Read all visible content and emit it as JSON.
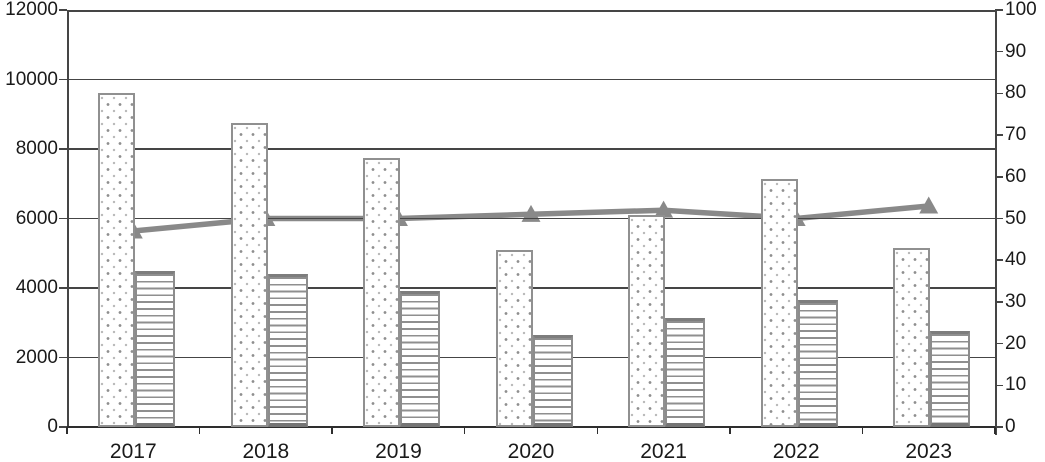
{
  "colors": {
    "axis": "#454545",
    "bottom_axis": "#2e2e2e",
    "text": "#1a1a1a",
    "bar_border": "#8c8c8c",
    "dot_pattern": "#8f8f8f",
    "stripe_pattern": "#8f8f8f",
    "line": "#898989",
    "background": "#ffffff"
  },
  "chart_data": {
    "type": "bar",
    "subtype": "combo-bar-line",
    "title": "",
    "xlabel": "",
    "ylabel": "",
    "legend": false,
    "grid": true,
    "categories": [
      "2017",
      "2018",
      "2019",
      "2020",
      "2021",
      "2022",
      "2023"
    ],
    "series": [
      {
        "name": "dotted_bar",
        "type": "bar",
        "axis": "left",
        "pattern": "dots",
        "values": [
          9600,
          8750,
          7750,
          5100,
          6100,
          7150,
          5150
        ]
      },
      {
        "name": "striped_bar",
        "type": "bar",
        "axis": "left",
        "pattern": "horizontal-stripes",
        "values": [
          4500,
          4400,
          3900,
          2650,
          3150,
          3650,
          2750
        ]
      },
      {
        "name": "line_triangle",
        "type": "line",
        "axis": "right",
        "marker": "triangle",
        "values": [
          47,
          50,
          50,
          51,
          52,
          50,
          53
        ]
      }
    ],
    "left_axis": {
      "min": 0,
      "max": 12000,
      "step": 2000,
      "ticks": [
        "0",
        "2000",
        "4000",
        "6000",
        "8000",
        "10000",
        "12000"
      ]
    },
    "right_axis": {
      "min": 0,
      "max": 100,
      "step": 10,
      "ticks": [
        "0",
        "10",
        "20",
        "30",
        "40",
        "50",
        "60",
        "70",
        "80",
        "90",
        "100"
      ]
    }
  }
}
